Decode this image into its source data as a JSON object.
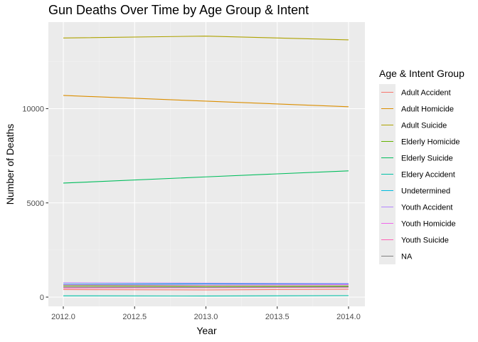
{
  "chart_data": {
    "type": "line",
    "title": "Gun Deaths Over Time by Age Group & Intent",
    "xlabel": "Year",
    "ylabel": "Number of Deaths",
    "xlim": [
      2012.0,
      2014.0
    ],
    "ylim": [
      0,
      14000
    ],
    "x_ticks": [
      2012.0,
      2012.5,
      2013.0,
      2013.5,
      2014.0
    ],
    "x_tick_labels": [
      "2012.0",
      "2012.5",
      "2013.0",
      "2013.5",
      "2014.0"
    ],
    "y_ticks": [
      0,
      5000,
      10000
    ],
    "y_tick_labels": [
      "0",
      "5000",
      "10000"
    ],
    "grid": true,
    "legend_position": "right",
    "legend_title": "Age & Intent Group",
    "x": [
      2012,
      2013,
      2014
    ],
    "series": [
      {
        "name": "Adult Accident",
        "color": "#F8766D",
        "values": [
          400,
          380,
          420
        ]
      },
      {
        "name": "Adult Homicide",
        "color": "#DB8E00",
        "values": [
          10700,
          10400,
          10100
        ]
      },
      {
        "name": "Adult Suicide",
        "color": "#AEA200",
        "values": [
          13750,
          13850,
          13650
        ]
      },
      {
        "name": "Elderly Homicide",
        "color": "#64B200",
        "values": [
          600,
          580,
          590
        ]
      },
      {
        "name": "Elderly Suicide",
        "color": "#00BD5C",
        "values": [
          6050,
          6380,
          6700
        ]
      },
      {
        "name": "Eldery Accident",
        "color": "#00C1A7",
        "values": [
          70,
          60,
          80
        ]
      },
      {
        "name": "Undetermined",
        "color": "#00BADE",
        "values": [
          680,
          700,
          690
        ]
      },
      {
        "name": "Youth Accident",
        "color": "#B385FF",
        "values": [
          760,
          740,
          720
        ]
      },
      {
        "name": "Youth Homicide",
        "color": "#EF67EB",
        "values": [
          650,
          640,
          660
        ]
      },
      {
        "name": "Youth Suicide",
        "color": "#FF63B6",
        "values": [
          480,
          500,
          520
        ]
      },
      {
        "name": "NA",
        "color": "#808080",
        "values": [
          530,
          520,
          540
        ]
      }
    ]
  }
}
